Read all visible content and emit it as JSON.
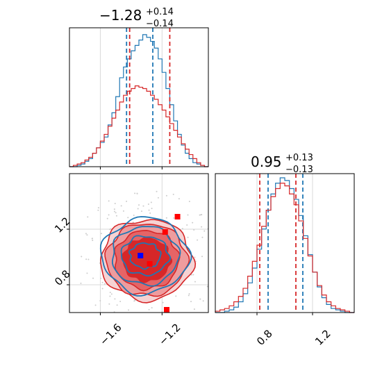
{
  "chart_data": [
    {
      "panel": "marginal-x",
      "type": "histogram",
      "title": {
        "value": "−1.28",
        "upper": "+0.14",
        "lower": "−0.14"
      },
      "xlim": [
        -1.8,
        -0.9
      ],
      "grid": true,
      "series": [
        {
          "name": "",
          "color": "#1f77b4",
          "values": [
            0.0,
            0.0,
            0.01,
            0.02,
            0.04,
            0.06,
            0.1,
            0.14,
            0.18,
            0.22,
            0.31,
            0.4,
            0.52,
            0.66,
            0.74,
            0.8,
            0.86,
            0.9,
            0.94,
            0.98,
            0.96,
            0.93,
            0.88,
            0.8,
            0.7,
            0.58,
            0.46,
            0.34,
            0.24,
            0.16,
            0.1,
            0.06,
            0.03,
            0.02,
            0.01,
            0.0
          ],
          "quantiles": [
            -1.43,
            -1.26
          ]
        },
        {
          "name": "",
          "color": "#d62728",
          "values": [
            0.0,
            0.01,
            0.02,
            0.03,
            0.05,
            0.07,
            0.1,
            0.14,
            0.19,
            0.24,
            0.3,
            0.36,
            0.42,
            0.48,
            0.53,
            0.56,
            0.58,
            0.6,
            0.59,
            0.58,
            0.56,
            0.53,
            0.5,
            0.46,
            0.42,
            0.37,
            0.32,
            0.27,
            0.22,
            0.17,
            0.13,
            0.09,
            0.06,
            0.03,
            0.01,
            0.0
          ],
          "quantiles": [
            -1.41,
            -1.15
          ]
        }
      ]
    },
    {
      "panel": "marginal-y",
      "type": "histogram",
      "title": {
        "value": "0.95",
        "upper": "+0.13",
        "lower": "−0.13"
      },
      "xlim": [
        0.5,
        1.5
      ],
      "grid": true,
      "series": [
        {
          "name": "",
          "color": "#1f77b4",
          "values": [
            0.0,
            0.0,
            0.01,
            0.02,
            0.04,
            0.08,
            0.14,
            0.22,
            0.33,
            0.47,
            0.62,
            0.76,
            0.88,
            0.96,
            1.0,
            0.98,
            0.92,
            0.84,
            0.72,
            0.57,
            0.43,
            0.3,
            0.19,
            0.11,
            0.06,
            0.03,
            0.02,
            0.01,
            0.0,
            0.0
          ],
          "quantiles": [
            0.88,
            1.13
          ]
        },
        {
          "name": "",
          "color": "#d62728",
          "values": [
            0.01,
            0.02,
            0.03,
            0.05,
            0.08,
            0.12,
            0.18,
            0.27,
            0.38,
            0.5,
            0.64,
            0.76,
            0.86,
            0.92,
            0.96,
            0.94,
            0.88,
            0.8,
            0.68,
            0.55,
            0.42,
            0.3,
            0.2,
            0.13,
            0.08,
            0.05,
            0.03,
            0.02,
            0.01,
            0.0
          ],
          "quantiles": [
            0.82,
            1.08
          ]
        }
      ],
      "xticks": [
        "0.8",
        "1.2"
      ]
    },
    {
      "panel": "joint",
      "type": "contour",
      "xlim": [
        -1.8,
        -0.9
      ],
      "ylim": [
        0.6,
        1.6
      ],
      "xticks": [
        "−1.6",
        "−1.2"
      ],
      "yticks": [
        "0.8",
        "1.2"
      ],
      "grid": true,
      "series": [
        {
          "name": "",
          "color": "#1f77b4",
          "center": [
            -1.31,
            1.01
          ]
        },
        {
          "name": "",
          "color": "#d62728",
          "center": [
            -1.3,
            0.98
          ]
        }
      ],
      "markers": [
        {
          "color": "#0000ff",
          "x": -1.34,
          "y": 1.01
        },
        {
          "color": "#ff0000",
          "x": -1.28,
          "y": 0.95
        },
        {
          "color": "#ff0000",
          "x": -1.18,
          "y": 1.18
        },
        {
          "color": "#ff0000",
          "x": -1.1,
          "y": 1.29
        },
        {
          "color": "#ff0000",
          "x": -1.17,
          "y": 0.62
        }
      ]
    }
  ]
}
